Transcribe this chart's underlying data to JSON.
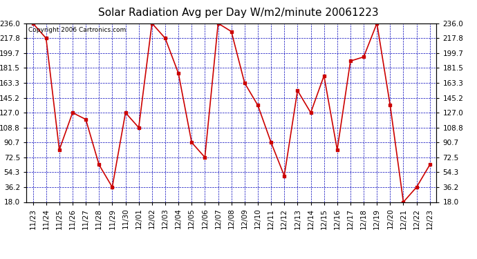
{
  "title": "Solar Radiation Avg per Day W/m2/minute 20061223",
  "copyright": "Copyright 2006 Cartronics.com",
  "dates": [
    "11/23",
    "11/24",
    "11/25",
    "11/26",
    "11/27",
    "11/28",
    "11/29",
    "11/30",
    "12/01",
    "12/02",
    "12/03",
    "12/04",
    "12/05",
    "12/06",
    "12/07",
    "12/08",
    "12/09",
    "12/10",
    "12/11",
    "12/12",
    "12/13",
    "12/14",
    "12/15",
    "12/16",
    "12/17",
    "12/18",
    "12/19",
    "12/20",
    "12/21",
    "12/22",
    "12/23"
  ],
  "values": [
    236.0,
    217.8,
    81.7,
    127.0,
    118.8,
    63.5,
    36.2,
    127.0,
    108.8,
    236.0,
    217.8,
    175.0,
    90.7,
    72.5,
    236.0,
    226.0,
    163.3,
    136.0,
    90.7,
    50.0,
    154.0,
    127.0,
    172.0,
    81.7,
    190.0,
    195.0,
    236.0,
    136.0,
    18.0,
    36.2,
    63.5
  ],
  "ylim": [
    18.0,
    236.0
  ],
  "yticks": [
    18.0,
    36.2,
    54.3,
    72.5,
    90.7,
    108.8,
    127.0,
    145.2,
    163.3,
    181.5,
    199.7,
    217.8,
    236.0
  ],
  "line_color": "#cc0000",
  "marker_color": "#cc0000",
  "bg_color": "#ffffff",
  "plot_bg_color": "#ffffff",
  "grid_color": "#0000bb",
  "title_fontsize": 11,
  "copyright_fontsize": 6.5,
  "tick_fontsize": 7.5
}
